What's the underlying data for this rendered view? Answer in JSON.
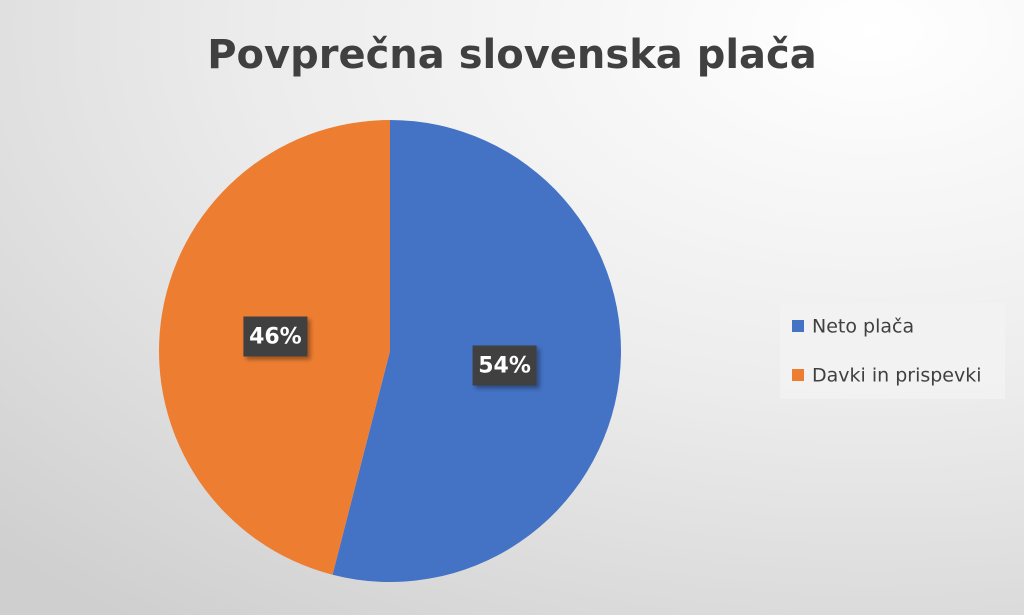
{
  "chart_data": {
    "type": "pie",
    "title": "Povprečna slovenska plača",
    "categories": [
      "Neto plača",
      "Davki in prispevki"
    ],
    "values": [
      54,
      46
    ],
    "value_labels": [
      "54%",
      "46%"
    ],
    "colors": [
      "#4472c4",
      "#ed7d31"
    ],
    "legend": "right"
  }
}
